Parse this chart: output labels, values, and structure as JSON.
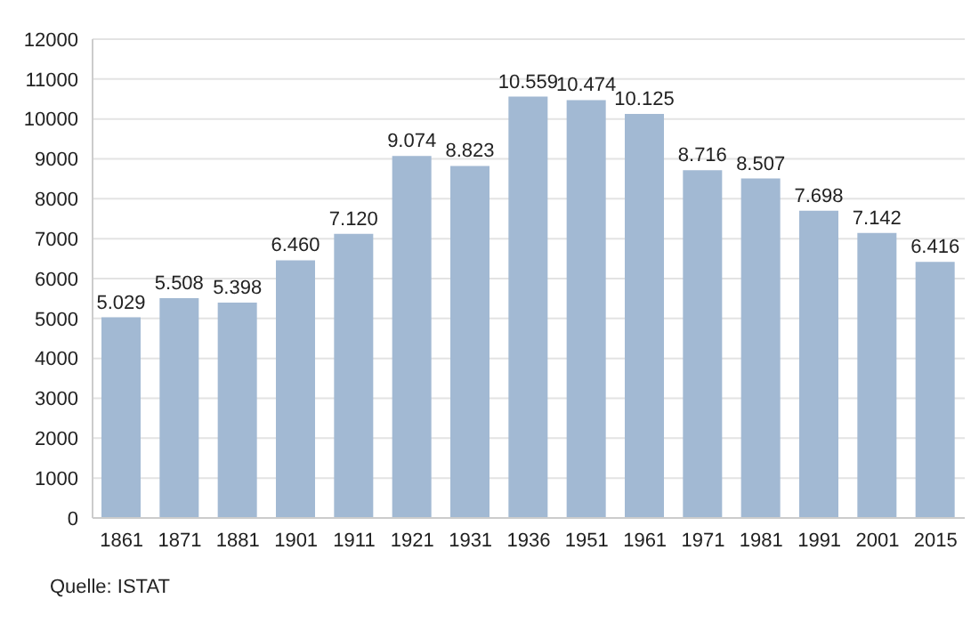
{
  "chart_data": {
    "type": "bar",
    "categories": [
      "1861",
      "1871",
      "1881",
      "1901",
      "1911",
      "1921",
      "1931",
      "1936",
      "1951",
      "1961",
      "1971",
      "1981",
      "1991",
      "2001",
      "2015"
    ],
    "values": [
      5029,
      5508,
      5398,
      6460,
      7120,
      9074,
      8823,
      10559,
      10474,
      10125,
      8716,
      8507,
      7698,
      7142,
      6416
    ],
    "value_labels": [
      "5.029",
      "5.508",
      "5.398",
      "6.460",
      "7.120",
      "9.074",
      "8.823",
      "10.559",
      "10.474",
      "10.125",
      "8.716",
      "8.507",
      "7.698",
      "7.142",
      "6.416"
    ],
    "color": "#a2b9d3",
    "ylim": [
      0,
      12000
    ],
    "yticks": [
      0,
      1000,
      2000,
      3000,
      4000,
      5000,
      6000,
      7000,
      8000,
      9000,
      10000,
      11000,
      12000
    ],
    "grid": "y",
    "annotations": [
      "Quelle: ISTAT"
    ]
  }
}
